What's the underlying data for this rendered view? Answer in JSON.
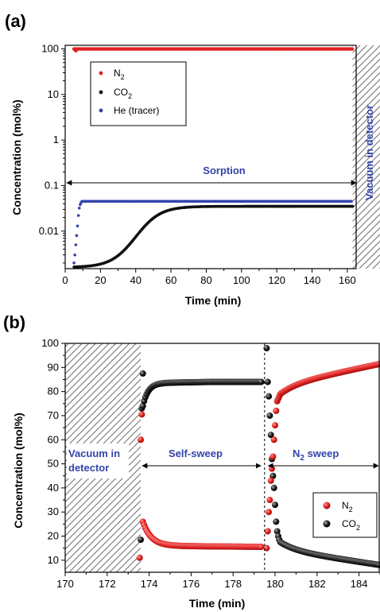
{
  "chart_data": [
    {
      "panel_label": "(a)",
      "type": "scatter",
      "xlabel": "Time (min)",
      "ylabel": "Concentration (mol%)",
      "xlim": [
        0,
        165
      ],
      "ylim": [
        0.0015,
        120
      ],
      "yscale": "log",
      "xticks": [
        "0",
        "20",
        "40",
        "60",
        "80",
        "100",
        "120",
        "140",
        "160"
      ],
      "yticks": [
        "0.01",
        "0.1",
        "1",
        "10",
        "100"
      ],
      "legend_position": "top-left",
      "series": [
        {
          "name": "N",
          "sub": "2",
          "color": "#e02020"
        },
        {
          "name": "CO",
          "sub": "2",
          "color": "#111111"
        },
        {
          "name": "He (tracer)",
          "sub": "",
          "color": "#3344aa"
        }
      ],
      "annotations": {
        "sorption": "Sorption",
        "vacuum": "Vacuum in detector"
      },
      "curves": {
        "n2": {
          "start": 5,
          "end": 163,
          "value": 100,
          "dip": [
            [
              6,
              93
            ]
          ]
        },
        "co2": {
          "start": 5,
          "end": 163,
          "baseline": 0.0016,
          "plateau": 0.035,
          "rise_mid": 40,
          "rise_width": 7
        },
        "he": {
          "points": [
            [
              5,
              0.002
            ],
            [
              5.5,
              0.003
            ],
            [
              6,
              0.005
            ],
            [
              6.5,
              0.008
            ],
            [
              7,
              0.013
            ],
            [
              7.5,
              0.022
            ],
            [
              8,
              0.032
            ],
            [
              8.5,
              0.038
            ],
            [
              9,
              0.042
            ]
          ],
          "plateau": 0.045,
          "end": 163
        }
      },
      "hatch_x": [
        163,
        165
      ]
    },
    {
      "panel_label": "(b)",
      "type": "scatter",
      "xlabel": "Time (min)",
      "ylabel": "Concentration (mol%)",
      "xlim": [
        170,
        185
      ],
      "ylim": [
        5,
        100
      ],
      "xticks": [
        "170",
        "172",
        "174",
        "176",
        "178",
        "180",
        "182",
        "184"
      ],
      "yticks": [
        "10",
        "20",
        "30",
        "40",
        "50",
        "60",
        "70",
        "80",
        "90",
        "100"
      ],
      "legend_position": "bottom-right",
      "series": [
        {
          "name": "N",
          "sub": "2",
          "color": "#e02020"
        },
        {
          "name": "CO",
          "sub": "2",
          "color": "#111111"
        }
      ],
      "annotations": {
        "vacuum_line1": "Vacuum in",
        "vacuum_line2": "detector",
        "self_sweep": "Self-sweep",
        "n2_sweep_prefix": "N",
        "n2_sweep_sub": "2",
        "n2_sweep_suffix": " sweep"
      },
      "hatch_x": [
        170,
        173.6
      ],
      "divider_x": 179.5,
      "self_sweep_arrow": [
        173.6,
        179.4
      ],
      "n2_sweep_arrow": [
        179.6,
        185
      ],
      "curves": {
        "co2_self": {
          "start": 173.7,
          "end": 179.4,
          "initial": [
            [
              173.6,
              18.5
            ],
            [
              173.65,
              73
            ],
            [
              173.7,
              87.5
            ]
          ],
          "from": 74,
          "to": 83.5,
          "tau": 0.25
        },
        "n2_self": {
          "start": 173.7,
          "end": 179.4,
          "initial": [
            [
              173.55,
              11
            ],
            [
              173.6,
              60
            ],
            [
              173.65,
              70.5
            ]
          ],
          "from": 26,
          "to": 16,
          "tau": 0.4
        },
        "co2_sweep": {
          "points": [
            [
              179.6,
              98
            ],
            [
              179.65,
              84
            ],
            [
              179.7,
              78
            ],
            [
              179.75,
              70
            ],
            [
              179.8,
              62
            ],
            [
              179.85,
              52
            ],
            [
              179.9,
              45
            ],
            [
              179.95,
              40
            ],
            [
              180.0,
              33
            ],
            [
              180.05,
              26
            ],
            [
              180.1,
              22
            ],
            [
              180.15,
              20
            ],
            [
              180.2,
              18.5
            ]
          ],
          "from": 17.5,
          "to": 8,
          "tail_start": 180.25,
          "end": 185
        },
        "n2_sweep": {
          "points": [
            [
              179.6,
              15
            ],
            [
              179.65,
              22
            ],
            [
              179.7,
              30
            ],
            [
              179.75,
              35
            ],
            [
              179.8,
              43
            ],
            [
              179.85,
              48
            ],
            [
              179.9,
              53
            ],
            [
              179.95,
              60
            ],
            [
              180.0,
              66
            ],
            [
              180.05,
              72
            ],
            [
              180.1,
              76
            ],
            [
              180.15,
              77
            ],
            [
              180.2,
              78
            ]
          ],
          "from": 79,
          "to": 91.5,
          "tail_start": 180.25,
          "end": 185
        }
      }
    }
  ]
}
